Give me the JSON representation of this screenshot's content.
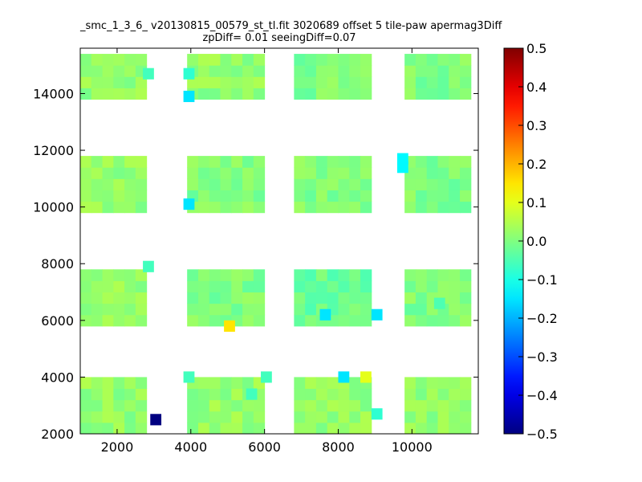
{
  "chart_data": {
    "type": "heatmap",
    "title": "_smc_1_3_6_ v20130815_00579_st_tl.fit 3020689 offset 5 tile-paw apermag3Diff",
    "subtitle": "zpDiff= 0.01 seeingDiff=0.07",
    "xlabel": "",
    "ylabel": "",
    "xlim": [
      1000,
      11800
    ],
    "ylim": [
      2000,
      15600
    ],
    "x_ticks": [
      2000,
      4000,
      6000,
      8000,
      10000
    ],
    "x_tick_labels": [
      "2000",
      "4000",
      "6000",
      "8000",
      "10000"
    ],
    "y_ticks": [
      2000,
      4000,
      6000,
      8000,
      10000,
      12000,
      14000
    ],
    "y_tick_labels": [
      "2000",
      "4000",
      "6000",
      "8000",
      "10000",
      "12000",
      "14000"
    ],
    "cell_size": [
      300,
      400
    ],
    "colorscale": "jet",
    "colorbar": {
      "range": [
        -0.5,
        0.5
      ],
      "ticks": [
        0.5,
        0.4,
        0.3,
        0.2,
        0.1,
        0.0,
        -0.1,
        -0.2,
        -0.3,
        -0.4,
        -0.5
      ],
      "tick_labels": [
        "0.5",
        "0.4",
        "0.3",
        "0.2",
        "0.1",
        "0.0",
        "−0.1",
        "−0.2",
        "−0.3",
        "−0.4",
        "−0.5"
      ]
    },
    "blocks": [
      {
        "x": [
          1000,
          3000
        ],
        "y": [
          13800,
          15600
        ],
        "value": 0.02
      },
      {
        "x": [
          1000,
          3000
        ],
        "y": [
          9800,
          11800
        ],
        "value": 0.02
      },
      {
        "x": [
          1000,
          3000
        ],
        "y": [
          5800,
          7800
        ],
        "value": 0.02
      },
      {
        "x": [
          1000,
          3000
        ],
        "y": [
          2000,
          4000
        ],
        "value": 0.02
      },
      {
        "x": [
          3900,
          6000
        ],
        "y": [
          13800,
          15600
        ],
        "value": 0.02
      },
      {
        "x": [
          3900,
          6000
        ],
        "y": [
          9800,
          11800
        ],
        "value": 0.0
      },
      {
        "x": [
          3900,
          6000
        ],
        "y": [
          5800,
          7800
        ],
        "value": 0.0
      },
      {
        "x": [
          3900,
          6000
        ],
        "y": [
          2000,
          4000
        ],
        "value": 0.02
      },
      {
        "x": [
          6800,
          8900
        ],
        "y": [
          13800,
          15600
        ],
        "value": 0.0
      },
      {
        "x": [
          6800,
          8900
        ],
        "y": [
          9800,
          11800
        ],
        "value": 0.0
      },
      {
        "x": [
          6800,
          8900
        ],
        "y": [
          5800,
          7800
        ],
        "value": -0.02
      },
      {
        "x": [
          6800,
          8900
        ],
        "y": [
          2000,
          4000
        ],
        "value": 0.02
      },
      {
        "x": [
          9800,
          11800
        ],
        "y": [
          13800,
          15600
        ],
        "value": 0.0
      },
      {
        "x": [
          9800,
          11800
        ],
        "y": [
          9800,
          11800
        ],
        "value": 0.0
      },
      {
        "x": [
          9800,
          11800
        ],
        "y": [
          5800,
          7800
        ],
        "value": 0.0
      },
      {
        "x": [
          9800,
          11800
        ],
        "y": [
          2000,
          4000
        ],
        "value": 0.02
      }
    ],
    "highlight_cells": [
      {
        "x": 2900,
        "y": 2300,
        "value": -0.5
      },
      {
        "x": 4900,
        "y": 5600,
        "value": 0.15
      },
      {
        "x": 3800,
        "y": 13700,
        "value": -0.15
      },
      {
        "x": 3800,
        "y": 9900,
        "value": -0.15
      },
      {
        "x": 9600,
        "y": 11200,
        "value": -0.13
      },
      {
        "x": 9600,
        "y": 11500,
        "value": -0.13
      },
      {
        "x": 7500,
        "y": 6000,
        "value": -0.15
      },
      {
        "x": 8900,
        "y": 6000,
        "value": -0.15
      },
      {
        "x": 8000,
        "y": 3800,
        "value": -0.15
      },
      {
        "x": 8600,
        "y": 3800,
        "value": 0.1
      },
      {
        "x": 8900,
        "y": 2500,
        "value": -0.08
      },
      {
        "x": 3800,
        "y": 14500,
        "value": -0.08
      },
      {
        "x": 2700,
        "y": 14500,
        "value": -0.06
      },
      {
        "x": 2700,
        "y": 7700,
        "value": -0.06
      },
      {
        "x": 3800,
        "y": 3800,
        "value": -0.06
      },
      {
        "x": 5500,
        "y": 3200,
        "value": -0.06
      },
      {
        "x": 5900,
        "y": 3800,
        "value": -0.06
      },
      {
        "x": 10600,
        "y": 6400,
        "value": -0.05
      }
    ]
  }
}
